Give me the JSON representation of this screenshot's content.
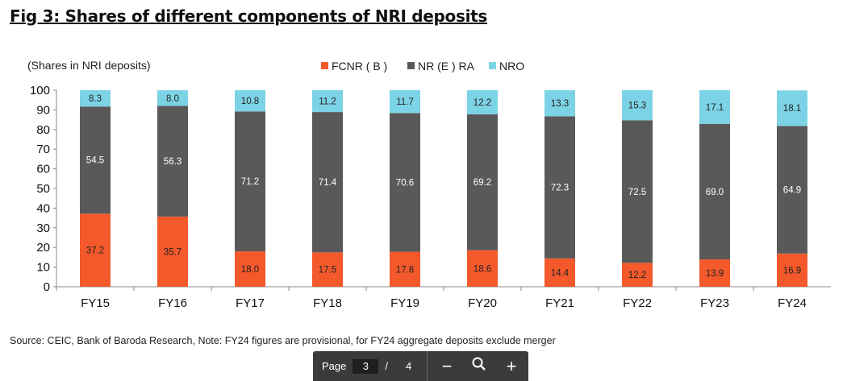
{
  "title": "Fig 3: Shares of different components of NRI deposits",
  "source": "Source: CEIC, Bank of Baroda Research, Note: FY24 figures are provisional, for FY24 aggregate deposits exclude merger",
  "toolbar": {
    "page_label": "Page",
    "current_page": "3",
    "separator": "/",
    "total_pages": "4",
    "zoom_out": "−",
    "zoom_in": "+"
  },
  "chart_data": {
    "type": "bar",
    "stacked": true,
    "ylabel": "(Shares in NRI deposits)",
    "ylim": [
      0,
      100
    ],
    "yticks": [
      0,
      10,
      20,
      30,
      40,
      50,
      60,
      70,
      80,
      90,
      100
    ],
    "legend_position": "top",
    "grid": false,
    "categories": [
      "FY15",
      "FY16",
      "FY17",
      "FY18",
      "FY19",
      "FY20",
      "FY21",
      "FY22",
      "FY23",
      "FY24"
    ],
    "series": [
      {
        "name": "FCNR ( B )",
        "color": "#f4592b",
        "label_color": "#222222",
        "values": [
          37.2,
          35.7,
          18.0,
          17.5,
          17.8,
          18.6,
          14.4,
          12.2,
          13.9,
          16.9
        ]
      },
      {
        "name": "NR (E ) RA",
        "color": "#595959",
        "label_color": "#ffffff",
        "values": [
          54.5,
          56.3,
          71.2,
          71.4,
          70.6,
          69.2,
          72.3,
          72.5,
          69.0,
          64.9
        ]
      },
      {
        "name": "NRO",
        "color": "#7dd3e6",
        "label_color": "#222222",
        "values": [
          8.3,
          8.0,
          10.8,
          11.2,
          11.7,
          12.2,
          13.3,
          15.3,
          17.1,
          18.1
        ]
      }
    ]
  }
}
